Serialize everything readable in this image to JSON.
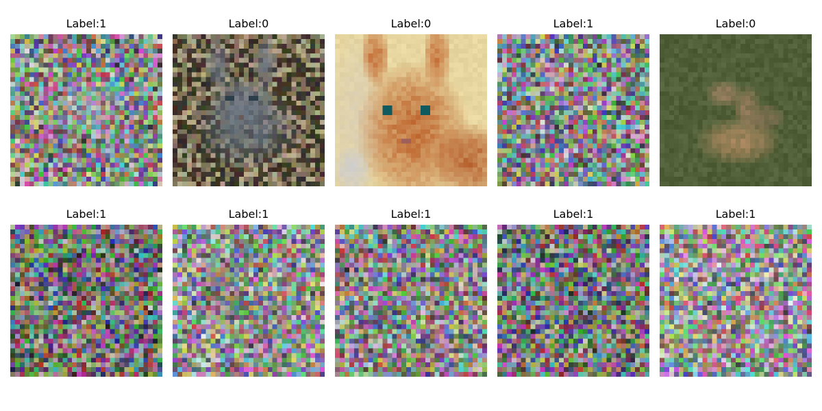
{
  "grid": {
    "rows": 2,
    "cols": 5,
    "pixel_resolution": 32,
    "panels": [
      {
        "title": "Label:1",
        "kind": "noise",
        "hint": "faint bright blob center"
      },
      {
        "title": "Label:0",
        "kind": "kitten",
        "hint": "grey kitten in leaves"
      },
      {
        "title": "Label:0",
        "kind": "cat",
        "hint": "orange cat face close-up"
      },
      {
        "title": "Label:1",
        "kind": "noise",
        "hint": "random color noise"
      },
      {
        "title": "Label:0",
        "kind": "deer",
        "hint": "deer lying on grass"
      },
      {
        "title": "Label:1",
        "kind": "noise",
        "hint": "dark random noise"
      },
      {
        "title": "Label:1",
        "kind": "noise",
        "hint": "noise with faint cat silhouette"
      },
      {
        "title": "Label:1",
        "kind": "noise",
        "hint": "random color noise"
      },
      {
        "title": "Label:1",
        "kind": "noise",
        "hint": "dark random noise"
      },
      {
        "title": "Label:1",
        "kind": "noise",
        "hint": "light random noise"
      }
    ]
  }
}
